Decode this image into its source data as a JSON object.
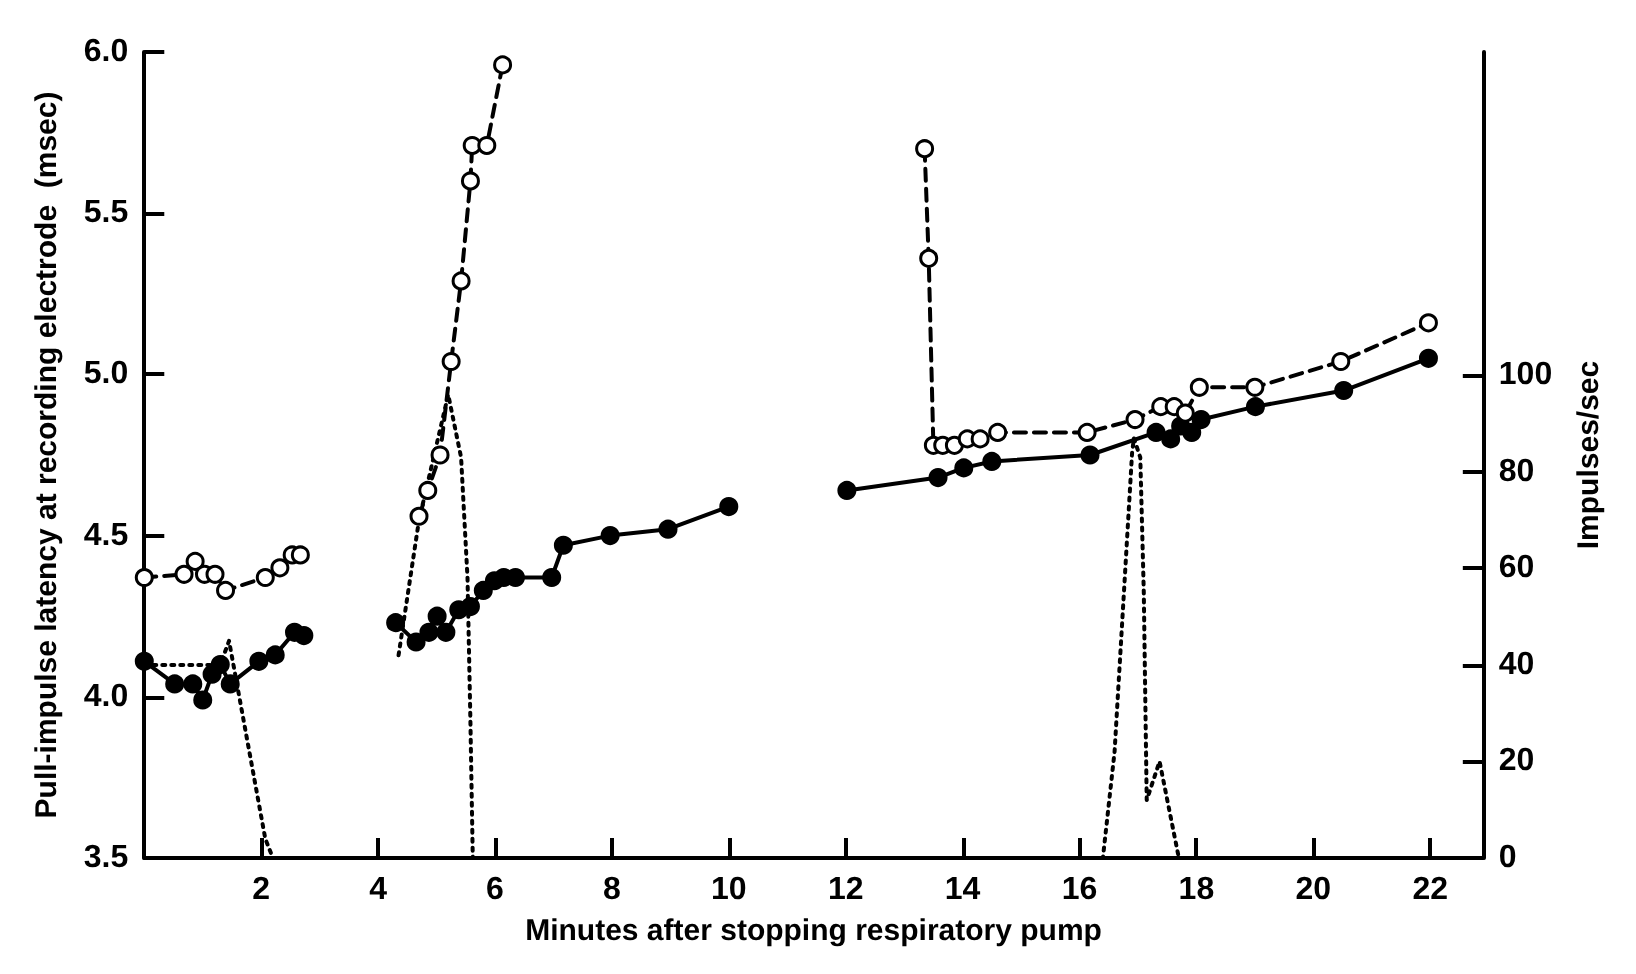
{
  "chart_data": {
    "type": "line",
    "xlabel": "Minutes after stopping respiratory pump",
    "ylabel": "Pull-impulse latency at recording electrode  (msec)",
    "y2label": "Impulses/sec",
    "xlim": [
      0,
      22.9
    ],
    "xticks": [
      2,
      4,
      6,
      8,
      10,
      12,
      14,
      16,
      18,
      20,
      22
    ],
    "ylim": [
      3.5,
      6.0
    ],
    "yticks": [
      3.5,
      {
        "value": 4.0,
        "label": "4.0"
      },
      4.5,
      {
        "value": 5.0,
        "label": "5.0"
      },
      5.5,
      {
        "value": 6.0,
        "label": "6.0"
      }
    ],
    "y2lim": [
      0,
      167
    ],
    "y2ticks": [
      0,
      20,
      40,
      60,
      80,
      100
    ],
    "series": [
      {
        "color": "#000000",
        "marker": "circle",
        "line_style": "solid",
        "x": [
          0,
          0.52,
          0.83,
          1.0,
          1.16,
          1.3,
          1.47,
          1.96,
          2.24,
          2.57,
          2.73,
          3.5,
          4.3,
          4.65,
          4.87,
          5.01,
          5.16,
          5.38,
          5.58,
          5.8,
          5.99,
          6.15,
          6.35,
          6.97,
          7.17,
          7.97,
          8.96,
          10.0,
          11.0,
          12.02,
          13.58,
          14.02,
          14.5,
          16.18,
          17.31,
          17.56,
          17.73,
          17.92,
          18.08,
          19.01,
          20.52,
          21.97
        ],
        "values": [
          4.11,
          4.04,
          4.04,
          3.99,
          4.07,
          4.1,
          4.04,
          4.11,
          4.13,
          4.2,
          4.19,
          null,
          4.23,
          4.17,
          4.2,
          4.25,
          4.2,
          4.27,
          4.28,
          4.33,
          4.36,
          4.37,
          4.37,
          4.37,
          4.47,
          4.5,
          4.52,
          4.59,
          null,
          4.64,
          4.68,
          4.71,
          4.73,
          4.75,
          4.82,
          4.8,
          4.84,
          4.82,
          4.86,
          4.9,
          4.95,
          5.05
        ]
      },
      {
        "color": "#000000",
        "marker": "circle",
        "line_style": "dashed",
        "x": [
          0,
          0.68,
          0.87,
          1.03,
          1.21,
          1.39,
          2.07,
          2.32,
          2.53,
          2.67,
          3.5,
          4.7,
          4.85,
          5.06,
          5.25,
          5.42,
          5.58,
          5.61,
          5.86,
          6.13,
          10.0,
          13.35,
          13.42,
          13.5,
          13.66,
          13.86,
          14.08,
          14.3,
          14.6,
          16.13,
          16.95,
          17.39,
          17.62,
          17.81,
          18.05,
          19.0,
          20.47,
          21.97
        ],
        "values": [
          4.37,
          4.38,
          4.42,
          4.38,
          4.38,
          4.33,
          4.37,
          4.4,
          4.44,
          4.44,
          null,
          4.56,
          4.64,
          4.75,
          5.04,
          5.29,
          5.6,
          5.71,
          5.71,
          5.96,
          null,
          5.7,
          5.36,
          4.78,
          4.78,
          4.78,
          4.8,
          4.8,
          4.82,
          4.82,
          4.86,
          4.9,
          4.9,
          4.88,
          4.96,
          4.96,
          5.04,
          5.16
        ]
      },
      {
        "color": "#000000",
        "axis": "y2",
        "marker": "none",
        "line_style": "dotted",
        "x": [
          0,
          1.3,
          1.45,
          2.07,
          2.2,
          2.9,
          3.6,
          4.35,
          4.7,
          5.2,
          5.42,
          5.53,
          5.58,
          5.62,
          8.0,
          12.0,
          16.4,
          16.6,
          16.76,
          16.9,
          16.93,
          17.04,
          17.1,
          17.15,
          17.37,
          17.7,
          20.0,
          22.9
        ],
        "values": [
          40,
          40,
          45,
          4,
          0,
          0,
          null,
          42,
          70,
          96,
          83,
          58,
          28,
          0,
          0,
          0,
          0,
          22,
          55,
          84,
          87,
          83,
          55,
          12,
          20,
          0,
          0,
          0
        ]
      }
    ]
  }
}
